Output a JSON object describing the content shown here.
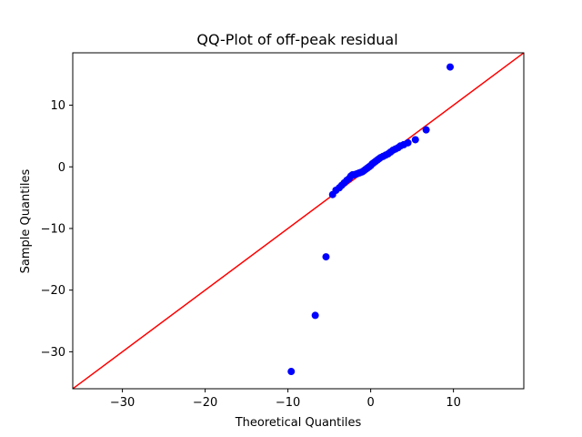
{
  "chart_data": {
    "type": "scatter",
    "title": "QQ-Plot of off-peak residual",
    "xlabel": "Theoretical Quantiles",
    "ylabel": "Sample Quantiles",
    "xlim": [
      -36,
      18.5
    ],
    "ylim": [
      -36,
      18.5
    ],
    "xticks": [
      -30,
      -20,
      -10,
      0,
      10
    ],
    "yticks": [
      -30,
      -20,
      -10,
      0,
      10
    ],
    "xtick_labels": [
      "−30",
      "−20",
      "−10",
      "0",
      "10"
    ],
    "ytick_labels": [
      "−30",
      "−20",
      "−10",
      "0",
      "10"
    ],
    "grid": false,
    "points_color": "#0000ff",
    "line_color": "#ff0000",
    "reference_line": {
      "type": "45-degree",
      "slope": 1,
      "intercept": 0
    },
    "series": [
      {
        "values_x": [
          -9.6,
          -6.7,
          -5.4,
          -4.6,
          -4.2,
          -3.8,
          -3.5,
          -3.2,
          -2.9,
          -2.6,
          -2.4,
          -2.2,
          -2.0,
          -1.8,
          -1.6,
          -1.4,
          -1.2,
          -1.0,
          -0.8,
          -0.6,
          -0.4,
          -0.2,
          0.0,
          0.2,
          0.4,
          0.6,
          0.8,
          1.0,
          1.2,
          1.5,
          1.8,
          2.1,
          2.4,
          2.7,
          3.0,
          3.3,
          3.6,
          4.0,
          4.5,
          5.4,
          6.7,
          9.6
        ],
        "values_y": [
          -33.2,
          -24.1,
          -14.6,
          -4.5,
          -3.8,
          -3.4,
          -3.0,
          -2.6,
          -2.2,
          -1.9,
          -1.5,
          -1.3,
          -1.3,
          -1.2,
          -1.1,
          -1.0,
          -0.9,
          -0.8,
          -0.6,
          -0.4,
          -0.2,
          0.0,
          0.2,
          0.5,
          0.7,
          0.9,
          1.1,
          1.3,
          1.5,
          1.7,
          1.9,
          2.1,
          2.4,
          2.7,
          2.9,
          3.1,
          3.4,
          3.6,
          3.9,
          4.4,
          6.0,
          16.2
        ]
      }
    ]
  }
}
